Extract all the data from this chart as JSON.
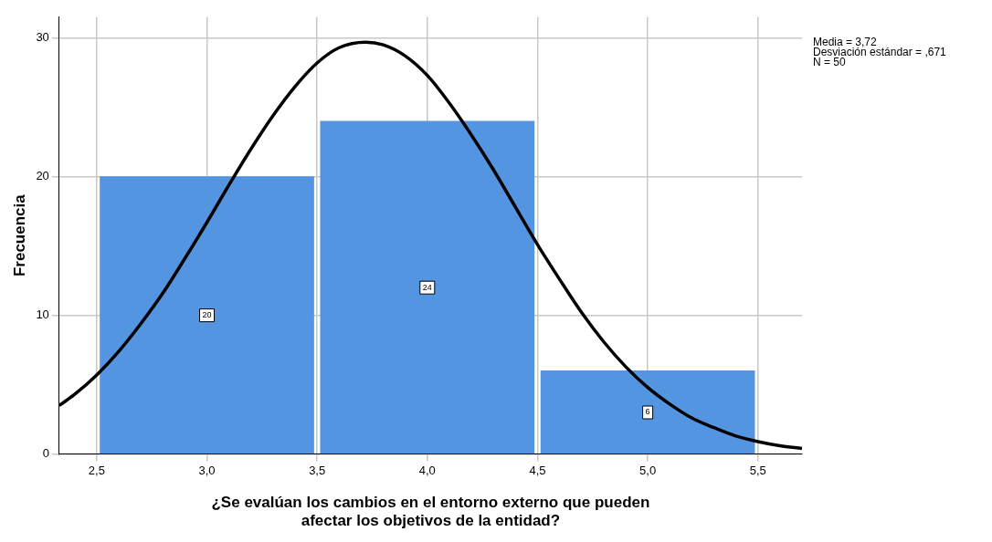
{
  "chart_data": {
    "type": "histogram",
    "xlabel": "¿Se evalúan los cambios en el entorno externo que pueden afectar los objetivos de la entidad?",
    "ylabel": "Frecuencia",
    "bins": [
      2.5,
      3.5,
      4.5,
      5.5
    ],
    "values": [
      20,
      24,
      6
    ],
    "value_labels": [
      "20",
      "24",
      "6"
    ],
    "color": "#5495e2",
    "series": [
      {
        "type": "line",
        "color": "#000000",
        "x": [
          2.33,
          2.4,
          2.5,
          2.6,
          2.7,
          2.8,
          2.9,
          3.0,
          3.1,
          3.2,
          3.3,
          3.4,
          3.5,
          3.6,
          3.72,
          3.8,
          3.9,
          4.0,
          4.1,
          4.2,
          4.3,
          4.4,
          4.5,
          4.6,
          4.7,
          4.8,
          4.9,
          5.0,
          5.1,
          5.2,
          5.3,
          5.4,
          5.5,
          5.6,
          5.7
        ],
        "values": [
          3.5,
          4.3,
          5.7,
          7.4,
          9.4,
          11.6,
          14.1,
          16.7,
          19.4,
          22.0,
          24.4,
          26.5,
          28.2,
          29.3,
          29.7,
          29.5,
          28.7,
          27.3,
          25.3,
          23.0,
          20.5,
          17.8,
          15.1,
          12.6,
          10.2,
          8.1,
          6.3,
          4.8,
          3.6,
          2.6,
          1.9,
          1.3,
          0.9,
          0.6,
          0.4
        ]
      }
    ],
    "xlim": [
      2.33,
      5.7
    ],
    "ylim": [
      0,
      31.5
    ],
    "xticks": [
      {
        "value": 2.5,
        "label": "2,5"
      },
      {
        "value": 3,
        "label": "3,0"
      },
      {
        "value": 3.5,
        "label": "3,5"
      },
      {
        "value": 4,
        "label": "4,0"
      },
      {
        "value": 4.5,
        "label": "4,5"
      },
      {
        "value": 5,
        "label": "5,0"
      },
      {
        "value": 5.5,
        "label": "5,5"
      }
    ],
    "yticks": [
      0,
      10,
      20,
      30
    ],
    "grid": true,
    "legend": false,
    "marker": "none",
    "line_style": "solid",
    "annotations": [
      "Media = 3,72",
      "Desviación estándar = ,671",
      "N = 50"
    ]
  }
}
